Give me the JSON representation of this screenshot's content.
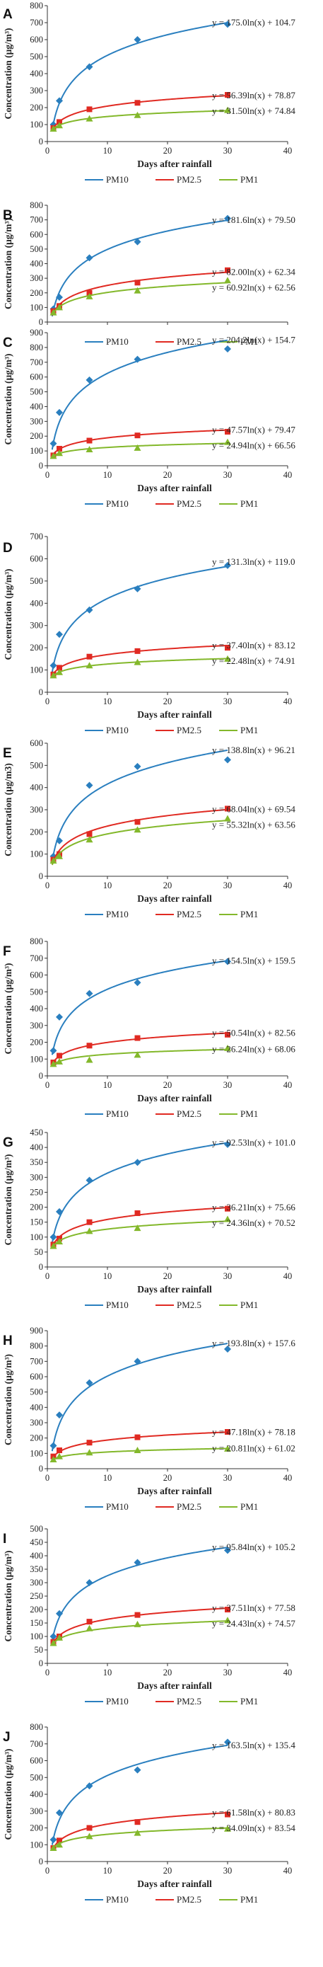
{
  "colors": {
    "PM10": "#2a7fbf",
    "PM2.5": "#e02a22",
    "PM1": "#83b82b"
  },
  "panels": [
    {
      "letter": "A",
      "chart_data": {
        "type": "scatter",
        "xlabel": "Days after rainfall",
        "ylabel": "Concentration (μg/m³)",
        "xlim": [
          0,
          40
        ],
        "ylim": [
          0,
          800
        ],
        "ystep": 100,
        "yticks": [
          0,
          100,
          200,
          300,
          400,
          500,
          600,
          700,
          800
        ],
        "xticks": [
          0,
          10,
          20,
          30,
          40
        ],
        "x": [
          1,
          2,
          7,
          15,
          30
        ],
        "series": [
          {
            "name": "PM10",
            "values": [
              100,
              240,
              440,
              600,
              690
            ],
            "a": 175.0,
            "b": 104.7,
            "equation": "y = 175.0ln(x) + 104.7"
          },
          {
            "name": "PM2.5",
            "values": [
              80,
              115,
              190,
              228,
              275
            ],
            "a": 56.39,
            "b": 78.87,
            "equation": "y = 56.39ln(x) + 78.87"
          },
          {
            "name": "PM1",
            "values": [
              75,
              95,
              135,
              155,
              185
            ],
            "a": 31.5,
            "b": 74.84,
            "equation": "y = 31.50ln(x) + 74.84"
          }
        ]
      }
    },
    {
      "letter": "B",
      "chart_data": {
        "type": "scatter",
        "xlabel": "",
        "ylabel": "Concentration (μg/m³)",
        "xlim": [
          0,
          40
        ],
        "ylim": [
          0,
          800
        ],
        "ystep": 100,
        "yticks": [
          0,
          100,
          200,
          300,
          400,
          500,
          600,
          700,
          800
        ],
        "xticks": [],
        "x": [
          1,
          2,
          7,
          15,
          30
        ],
        "series": [
          {
            "name": "PM10",
            "values": [
              90,
              170,
              440,
              550,
              710
            ],
            "a": 181.6,
            "b": 79.5,
            "equation": "y = 181.6ln(x) + 79.50"
          },
          {
            "name": "PM2.5",
            "values": [
              75,
              110,
              200,
              270,
              355
            ],
            "a": 82.0,
            "b": 62.34,
            "equation": "y = 82.00ln(x) + 62.34"
          },
          {
            "name": "PM1",
            "values": [
              65,
              100,
              175,
              215,
              285
            ],
            "a": 60.92,
            "b": 62.56,
            "equation": "y = 60.92ln(x) + 62.56"
          }
        ]
      }
    },
    {
      "letter": "C",
      "chart_data": {
        "type": "scatter",
        "xlabel": "Days after rainfall",
        "ylabel": "Concentration (μg/m³)",
        "xlim": [
          0,
          40
        ],
        "ylim": [
          0,
          900
        ],
        "ystep": 100,
        "yticks": [
          0,
          100,
          200,
          300,
          400,
          500,
          600,
          700,
          800,
          900
        ],
        "xticks": [
          0,
          10,
          20,
          30,
          40
        ],
        "x": [
          1,
          2,
          7,
          15,
          30
        ],
        "series": [
          {
            "name": "PM10",
            "values": [
              150,
              360,
              580,
              720,
              790
            ],
            "a": 204.2,
            "b": 154.7,
            "equation": "y = 204.2ln(x) + 154.7"
          },
          {
            "name": "PM2.5",
            "values": [
              70,
              115,
              170,
              205,
              230
            ],
            "a": 47.57,
            "b": 79.47,
            "equation": "y = 47.57ln(x) + 79.47"
          },
          {
            "name": "PM1",
            "values": [
              65,
              85,
              110,
              120,
              160
            ],
            "a": 24.94,
            "b": 66.56,
            "equation": "y = 24.94ln(x) + 66.56"
          }
        ]
      }
    },
    {
      "letter": "D",
      "chart_data": {
        "type": "scatter",
        "xlabel": "Days after rainfall",
        "ylabel": "Concentration (μg/m³)",
        "xlim": [
          0,
          40
        ],
        "ylim": [
          0,
          700
        ],
        "ystep": 100,
        "yticks": [
          0,
          100,
          200,
          300,
          400,
          500,
          600,
          700
        ],
        "xticks": [
          0,
          10,
          20,
          30,
          40
        ],
        "x": [
          1,
          2,
          7,
          15,
          30
        ],
        "series": [
          {
            "name": "PM10",
            "values": [
              120,
              260,
              370,
              465,
              570
            ],
            "a": 131.3,
            "b": 119.0,
            "equation": "y = 131.3ln(x) + 119.0"
          },
          {
            "name": "PM2.5",
            "values": [
              80,
              110,
              160,
              185,
              200
            ],
            "a": 37.4,
            "b": 83.12,
            "equation": "y = 37.40ln(x) + 83.12"
          },
          {
            "name": "PM1",
            "values": [
              75,
              90,
              120,
              135,
              150
            ],
            "a": 22.48,
            "b": 74.91,
            "equation": "y = 22.48ln(x) + 74.91"
          }
        ]
      }
    },
    {
      "letter": "E",
      "chart_data": {
        "type": "scatter",
        "xlabel": "Days after rainfall",
        "ylabel": "Concentration (μg/m3)",
        "xlim": [
          0,
          40
        ],
        "ylim": [
          0,
          600
        ],
        "ystep": 100,
        "yticks": [
          0,
          100,
          200,
          300,
          400,
          500,
          600
        ],
        "xticks": [
          0,
          10,
          20,
          30,
          40
        ],
        "x": [
          1,
          2,
          7,
          15,
          30
        ],
        "series": [
          {
            "name": "PM10",
            "values": [
              90,
              160,
              410,
              495,
              525
            ],
            "a": 138.8,
            "b": 96.21,
            "equation": "y = 138.8ln(x) + 96.21"
          },
          {
            "name": "PM2.5",
            "values": [
              75,
              100,
              190,
              245,
              305
            ],
            "a": 68.04,
            "b": 69.54,
            "equation": "y = 68.04ln(x) + 69.54"
          },
          {
            "name": "PM1",
            "values": [
              70,
              90,
              165,
              210,
              260
            ],
            "a": 55.32,
            "b": 63.56,
            "equation": "y = 55.32ln(x) + 63.56"
          }
        ]
      }
    },
    {
      "letter": "F",
      "chart_data": {
        "type": "scatter",
        "xlabel": "Days after rainfall",
        "ylabel": "Concentration (μg/m³)",
        "xlim": [
          0,
          40
        ],
        "ylim": [
          0,
          800
        ],
        "ystep": 100,
        "yticks": [
          0,
          100,
          200,
          300,
          400,
          500,
          600,
          700,
          800
        ],
        "xticks": [
          0,
          10,
          20,
          30,
          40
        ],
        "x": [
          1,
          2,
          7,
          15,
          30
        ],
        "series": [
          {
            "name": "PM10",
            "values": [
              150,
              350,
              490,
              555,
              680
            ],
            "a": 154.5,
            "b": 159.5,
            "equation": "y = 154.5ln(x) + 159.5"
          },
          {
            "name": "PM2.5",
            "values": [
              80,
              120,
              180,
              225,
              245
            ],
            "a": 50.54,
            "b": 82.56,
            "equation": "y = 50.54ln(x) + 82.56"
          },
          {
            "name": "PM1",
            "values": [
              70,
              85,
              95,
              125,
              165
            ],
            "a": 26.24,
            "b": 68.06,
            "equation": "y = 26.24ln(x) + 68.06"
          }
        ]
      }
    },
    {
      "letter": "G",
      "chart_data": {
        "type": "scatter",
        "xlabel": "Days after rainfall",
        "ylabel": "Concentration (μg/m³)",
        "xlim": [
          0,
          40
        ],
        "ylim": [
          0,
          450
        ],
        "ystep": 50,
        "yticks": [
          0,
          50,
          100,
          150,
          200,
          250,
          300,
          350,
          400,
          450
        ],
        "xticks": [
          0,
          10,
          20,
          30,
          40
        ],
        "x": [
          1,
          2,
          7,
          15,
          30
        ],
        "series": [
          {
            "name": "PM10",
            "values": [
              100,
              185,
              290,
              350,
              410
            ],
            "a": 92.53,
            "b": 101.0,
            "equation": "y = 92.53ln(x) + 101.0"
          },
          {
            "name": "PM2.5",
            "values": [
              75,
              95,
              150,
              180,
              195
            ],
            "a": 36.21,
            "b": 75.66,
            "equation": "y = 36.21ln(x) + 75.66"
          },
          {
            "name": "PM1",
            "values": [
              70,
              85,
              120,
              130,
              160
            ],
            "a": 24.36,
            "b": 70.52,
            "equation": "y = 24.36ln(x) + 70.52"
          }
        ]
      }
    },
    {
      "letter": "H",
      "chart_data": {
        "type": "scatter",
        "xlabel": "Days after rainfall",
        "ylabel": "Concentration (μg/m³)",
        "xlim": [
          0,
          40
        ],
        "ylim": [
          0,
          900
        ],
        "ystep": 100,
        "yticks": [
          0,
          100,
          200,
          300,
          400,
          500,
          600,
          700,
          800,
          900
        ],
        "xticks": [
          0,
          10,
          20,
          30,
          40
        ],
        "x": [
          1,
          2,
          7,
          15,
          30
        ],
        "series": [
          {
            "name": "PM10",
            "values": [
              150,
              350,
              560,
              700,
              780
            ],
            "a": 193.8,
            "b": 157.6,
            "equation": "y = 193.8ln(x) + 157.6"
          },
          {
            "name": "PM2.5",
            "values": [
              80,
              120,
              170,
              205,
              240
            ],
            "a": 47.18,
            "b": 78.18,
            "equation": "y = 47.18ln(x) + 78.18"
          },
          {
            "name": "PM1",
            "values": [
              60,
              80,
              105,
              120,
              130
            ],
            "a": 20.81,
            "b": 61.02,
            "equation": "y = 20.81ln(x) + 61.02"
          }
        ]
      }
    },
    {
      "letter": "I",
      "chart_data": {
        "type": "scatter",
        "xlabel": "Days after rainfall",
        "ylabel": "Concentration (μg/m³)",
        "xlim": [
          0,
          40
        ],
        "ylim": [
          0,
          500
        ],
        "ystep": 50,
        "yticks": [
          0,
          50,
          100,
          150,
          200,
          250,
          300,
          350,
          400,
          450,
          500
        ],
        "xticks": [
          0,
          10,
          20,
          30,
          40
        ],
        "x": [
          1,
          2,
          7,
          15,
          30
        ],
        "series": [
          {
            "name": "PM10",
            "values": [
              100,
              185,
              300,
              375,
              420
            ],
            "a": 95.84,
            "b": 105.2,
            "equation": "y = 95.84ln(x) + 105.2"
          },
          {
            "name": "PM2.5",
            "values": [
              80,
              100,
              155,
              180,
              200
            ],
            "a": 37.51,
            "b": 77.58,
            "equation": "y = 37.51ln(x) + 77.58"
          },
          {
            "name": "PM1",
            "values": [
              75,
              95,
              130,
              145,
              160
            ],
            "a": 24.43,
            "b": 74.57,
            "equation": "y = 24.43ln(x) + 74.57"
          }
        ]
      }
    },
    {
      "letter": "J",
      "chart_data": {
        "type": "scatter",
        "xlabel": "Days after rainfall",
        "ylabel": "Concentration (μg/m³)",
        "xlim": [
          0,
          40
        ],
        "ylim": [
          0,
          800
        ],
        "ystep": 100,
        "yticks": [
          0,
          100,
          200,
          300,
          400,
          500,
          600,
          700,
          800
        ],
        "xticks": [
          0,
          10,
          20,
          30,
          40
        ],
        "x": [
          1,
          2,
          7,
          15,
          30
        ],
        "series": [
          {
            "name": "PM10",
            "values": [
              130,
              290,
              450,
              545,
              710
            ],
            "a": 163.5,
            "b": 135.4,
            "equation": "y = 163.5ln(x) + 135.4"
          },
          {
            "name": "PM2.5",
            "values": [
              80,
              125,
              200,
              235,
              280
            ],
            "a": 61.58,
            "b": 80.83,
            "equation": "y = 61.58ln(x) + 80.83"
          },
          {
            "name": "PM1",
            "values": [
              80,
              100,
              150,
              170,
              195
            ],
            "a": 34.09,
            "b": 83.54,
            "equation": "y = 34.09ln(x) + 83.54"
          }
        ]
      }
    }
  ]
}
